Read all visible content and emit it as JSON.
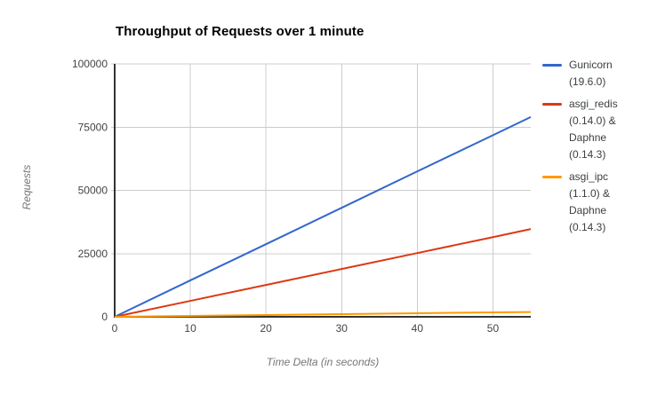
{
  "chart_data": {
    "type": "line",
    "title": "Throughput of Requests over 1 minute",
    "xlabel": "Time Delta (in seconds)",
    "ylabel": "Requests",
    "xlim": [
      0,
      55
    ],
    "ylim": [
      0,
      100000
    ],
    "grid": true,
    "legend_position": "right",
    "x": [
      0,
      10,
      20,
      30,
      40,
      50,
      55
    ],
    "series": [
      {
        "name": "Gunicorn (19.6.0)",
        "color": "#3366CC",
        "values": [
          0,
          14400,
          28700,
          43100,
          57500,
          71800,
          79000
        ]
      },
      {
        "name": "asgi_redis (0.14.0) & Daphne (0.14.3)",
        "color": "#DC3912",
        "values": [
          0,
          6300,
          12600,
          18900,
          25200,
          31500,
          34700
        ]
      },
      {
        "name": "asgi_ipc (1.1.0) & Daphne (0.14.3)",
        "color": "#FF9900",
        "values": [
          0,
          350,
          700,
          1050,
          1400,
          1750,
          1900
        ]
      }
    ],
    "x_ticks": [
      {
        "v": 0,
        "label": "0"
      },
      {
        "v": 10,
        "label": "10"
      },
      {
        "v": 20,
        "label": "20"
      },
      {
        "v": 30,
        "label": "30"
      },
      {
        "v": 40,
        "label": "40"
      },
      {
        "v": 50,
        "label": "50"
      }
    ],
    "y_ticks": [
      {
        "v": 0,
        "label": "0"
      },
      {
        "v": 25000,
        "label": "25000"
      },
      {
        "v": 50000,
        "label": "50000"
      },
      {
        "v": 75000,
        "label": "75000"
      },
      {
        "v": 100000,
        "label": "100000"
      }
    ],
    "colors": {
      "background": "#ffffff",
      "grid": "#cccccc",
      "axis": "#333333",
      "tick_label": "#444444",
      "axis_title": "#757575",
      "title": "#000000",
      "legend_text": "#3c4043"
    }
  }
}
